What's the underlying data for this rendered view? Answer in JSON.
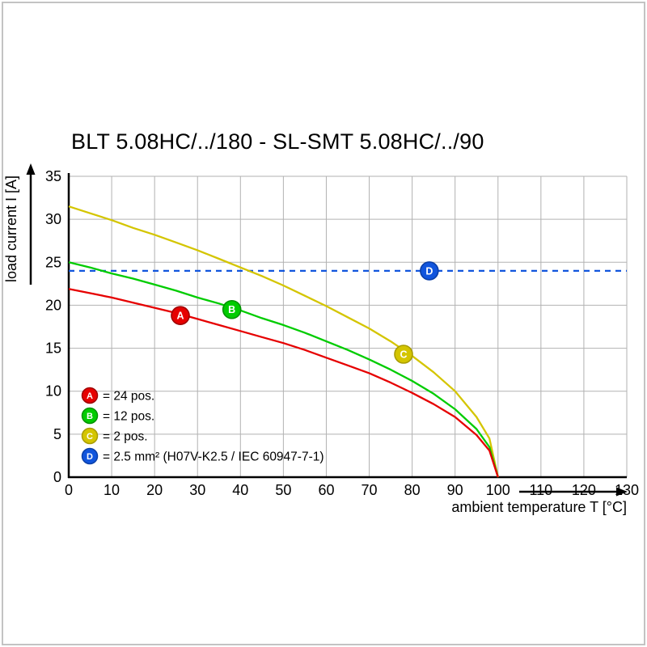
{
  "title": "BLT 5.08HC/../180 - SL-SMT 5.08HC/../90",
  "chart_data": {
    "type": "line",
    "title": "BLT 5.08HC/../180 - SL-SMT 5.08HC/../90",
    "xlabel": "ambient temperature T [°C]",
    "ylabel": "load current I [A]",
    "xlim": [
      0,
      130
    ],
    "ylim": [
      0,
      35
    ],
    "xticks": [
      0,
      10,
      20,
      30,
      40,
      50,
      60,
      70,
      80,
      90,
      100,
      110,
      120,
      130
    ],
    "yticks": [
      0,
      5,
      10,
      15,
      20,
      25,
      30,
      35
    ],
    "grid": true,
    "grid_color": "#b2b2b2",
    "axis_color": "#000000",
    "series": [
      {
        "id": "D",
        "name": "2.5 mm² (H07V-K2.5 / IEC 60947-7-1)",
        "color": "#1155dd",
        "edge": "#0a3fa8",
        "style": "dashed",
        "x": [
          0,
          130
        ],
        "y": [
          24,
          24
        ],
        "marker": {
          "x": 84,
          "y": 24
        }
      },
      {
        "id": "C",
        "name": "2 pos.",
        "color": "#d4c500",
        "edge": "#a89c00",
        "style": "solid",
        "x": [
          0,
          5,
          10,
          15,
          20,
          25,
          30,
          35,
          40,
          45,
          50,
          55,
          60,
          65,
          70,
          75,
          80,
          85,
          90,
          95,
          98,
          100
        ],
        "y": [
          31.5,
          30.7,
          29.9,
          29.0,
          28.2,
          27.3,
          26.4,
          25.4,
          24.4,
          23.4,
          22.3,
          21.1,
          19.9,
          18.6,
          17.3,
          15.8,
          14.1,
          12.2,
          10.0,
          7.0,
          4.5,
          0.0
        ],
        "marker": {
          "x": 78,
          "y": 14.3
        }
      },
      {
        "id": "B",
        "name": "12 pos.",
        "color": "#00cc00",
        "edge": "#009100",
        "style": "solid",
        "x": [
          0,
          5,
          10,
          15,
          20,
          25,
          30,
          35,
          40,
          45,
          50,
          55,
          60,
          65,
          70,
          75,
          80,
          85,
          90,
          95,
          98,
          100
        ],
        "y": [
          25.0,
          24.4,
          23.7,
          23.1,
          22.4,
          21.7,
          20.9,
          20.2,
          19.4,
          18.5,
          17.7,
          16.8,
          15.8,
          14.8,
          13.7,
          12.5,
          11.2,
          9.7,
          7.9,
          5.6,
          3.5,
          0.0
        ],
        "marker": {
          "x": 38,
          "y": 19.5
        }
      },
      {
        "id": "A",
        "name": "24 pos.",
        "color": "#e60000",
        "edge": "#9e0000",
        "style": "solid",
        "x": [
          0,
          5,
          10,
          15,
          20,
          25,
          30,
          35,
          40,
          45,
          50,
          55,
          60,
          65,
          70,
          75,
          80,
          85,
          90,
          95,
          98,
          100
        ],
        "y": [
          21.9,
          21.4,
          20.9,
          20.3,
          19.7,
          19.1,
          18.4,
          17.7,
          17.0,
          16.3,
          15.6,
          14.8,
          13.9,
          13.0,
          12.1,
          11.0,
          9.8,
          8.5,
          7.0,
          4.9,
          3.1,
          0.0
        ],
        "marker": {
          "x": 26,
          "y": 18.8
        }
      }
    ],
    "legend": {
      "position": "lower-left-inside",
      "items": [
        {
          "id": "A",
          "color": "#e60000",
          "edge": "#9e0000",
          "label": "= 24 pos."
        },
        {
          "id": "B",
          "color": "#00cc00",
          "edge": "#009100",
          "label": "= 12 pos."
        },
        {
          "id": "C",
          "color": "#d4c500",
          "edge": "#a89c00",
          "label": "= 2 pos."
        },
        {
          "id": "D",
          "color": "#1155dd",
          "edge": "#0a3fa8",
          "label": "= 2.5 mm² (H07V-K2.5 / IEC 60947-7-1)"
        }
      ]
    }
  }
}
